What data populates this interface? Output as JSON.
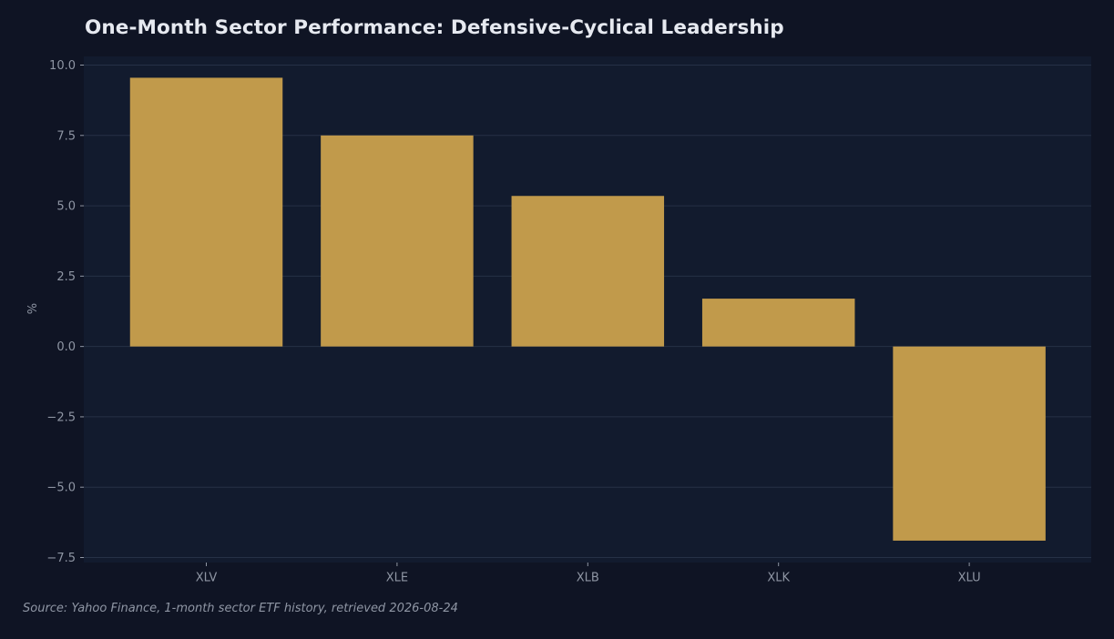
{
  "chart_data": {
    "type": "bar",
    "title": "One-Month Sector Performance: Defensive-Cyclical Leadership",
    "categories": [
      "XLV",
      "XLE",
      "XLB",
      "XLK",
      "XLU"
    ],
    "values": [
      9.55,
      7.5,
      5.35,
      1.7,
      -6.9
    ],
    "xlabel": "",
    "ylabel": "%",
    "ylim": [
      -7.5,
      10.0
    ],
    "yticks": [
      10.0,
      7.5,
      5.0,
      2.5,
      0.0,
      -2.5,
      -5.0,
      -7.5
    ],
    "ytick_labels": [
      "10.0",
      "7.5",
      "5.0",
      "2.5",
      "0.0",
      "−2.5",
      "−5.0",
      "−7.5"
    ],
    "grid": "horizontal",
    "source": "Source: Yahoo Finance, 1-month sector ETF history, retrieved 2026-08-24"
  },
  "colors": {
    "background": "#0f1424",
    "plot_background": "#121b2e",
    "bar": "#c19a4b",
    "grid": "#263146",
    "text": "#8f96a4",
    "title": "#e6e9f0"
  }
}
